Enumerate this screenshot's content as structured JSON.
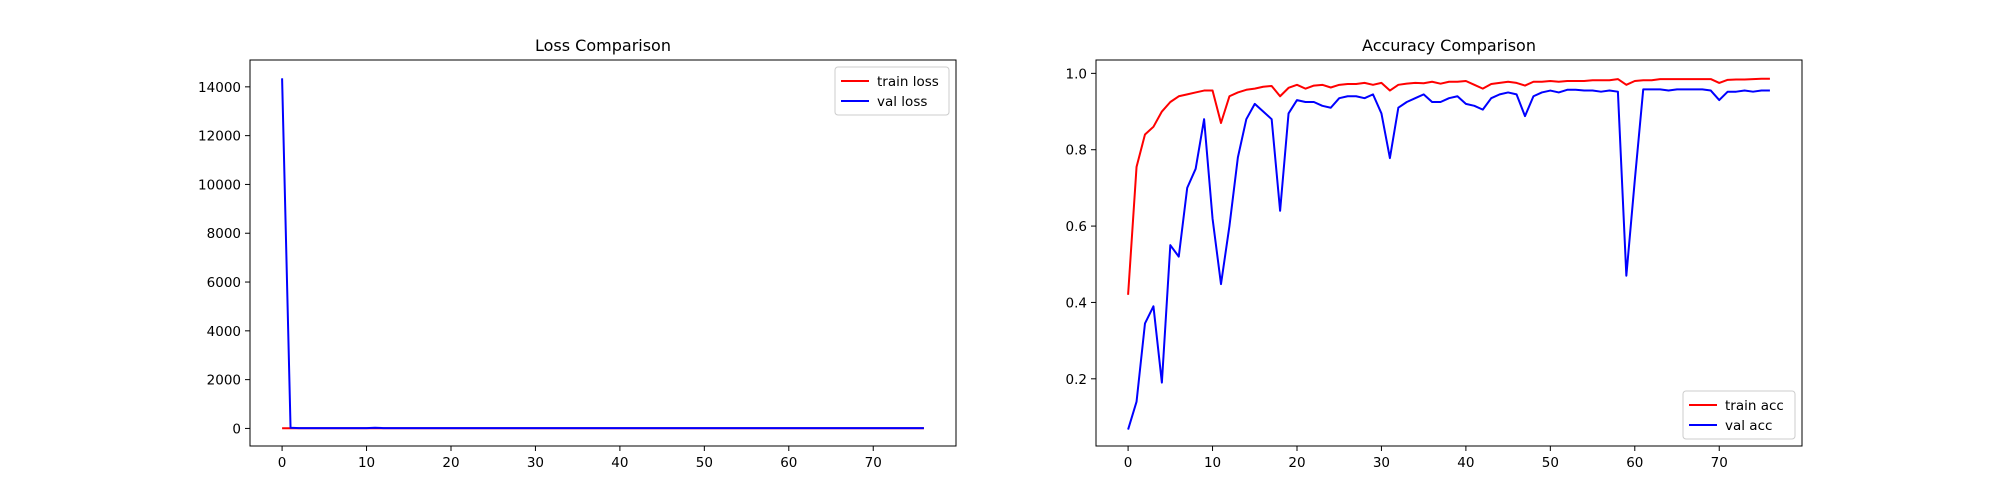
{
  "chart_data": [
    {
      "type": "line",
      "title": "Loss Comparison",
      "xlabel": "",
      "ylabel": "",
      "xlim": [
        -3.8,
        79.8
      ],
      "ylim": [
        -720,
        15100
      ],
      "xticks": [
        0,
        10,
        20,
        30,
        40,
        50,
        60,
        70
      ],
      "yticks": [
        0,
        2000,
        4000,
        6000,
        8000,
        10000,
        12000,
        14000
      ],
      "grid": false,
      "legend": "upper right",
      "series": [
        {
          "name": "train loss",
          "color": "#ff0000",
          "x": [
            0,
            76
          ],
          "y": [
            10,
            10
          ]
        },
        {
          "name": "val loss",
          "color": "#0000ff",
          "x": [
            0,
            1,
            2,
            10,
            11,
            12,
            76
          ],
          "y": [
            14350,
            30,
            15,
            15,
            30,
            15,
            12
          ]
        }
      ]
    },
    {
      "type": "line",
      "title": "Accuracy Comparison",
      "xlabel": "",
      "ylabel": "",
      "xlim": [
        -3.8,
        79.8
      ],
      "ylim": [
        0.024,
        1.035
      ],
      "xticks": [
        0,
        10,
        20,
        30,
        40,
        50,
        60,
        70
      ],
      "yticks": [
        0.2,
        0.4,
        0.6,
        0.8,
        1.0
      ],
      "ytick_labels": [
        "0.2",
        "0.4",
        "0.6",
        "0.8",
        "1.0"
      ],
      "grid": false,
      "legend": "lower right",
      "series": [
        {
          "name": "train acc",
          "color": "#ff0000",
          "x": [
            0,
            1,
            2,
            3,
            4,
            5,
            6,
            7,
            8,
            9,
            10,
            11,
            12,
            13,
            14,
            15,
            16,
            17,
            18,
            19,
            20,
            21,
            22,
            23,
            24,
            25,
            26,
            27,
            28,
            29,
            30,
            31,
            32,
            33,
            34,
            35,
            36,
            37,
            38,
            39,
            40,
            41,
            42,
            43,
            44,
            45,
            46,
            47,
            48,
            49,
            50,
            51,
            52,
            53,
            54,
            55,
            56,
            57,
            58,
            59,
            60,
            61,
            62,
            63,
            64,
            65,
            66,
            67,
            68,
            69,
            70,
            71,
            72,
            73,
            74,
            75,
            76
          ],
          "y": [
            0.42,
            0.755,
            0.84,
            0.86,
            0.9,
            0.925,
            0.94,
            0.945,
            0.95,
            0.955,
            0.955,
            0.87,
            0.94,
            0.95,
            0.957,
            0.96,
            0.965,
            0.967,
            0.94,
            0.962,
            0.97,
            0.96,
            0.968,
            0.97,
            0.963,
            0.97,
            0.972,
            0.972,
            0.975,
            0.97,
            0.975,
            0.955,
            0.97,
            0.973,
            0.975,
            0.974,
            0.978,
            0.973,
            0.978,
            0.978,
            0.98,
            0.97,
            0.96,
            0.972,
            0.975,
            0.978,
            0.975,
            0.968,
            0.978,
            0.978,
            0.98,
            0.978,
            0.98,
            0.98,
            0.98,
            0.982,
            0.982,
            0.982,
            0.985,
            0.97,
            0.98,
            0.982,
            0.982,
            0.985,
            0.985,
            0.985,
            0.985,
            0.985,
            0.985,
            0.985,
            0.975,
            0.983,
            0.984,
            0.984,
            0.985,
            0.986,
            0.986
          ]
        },
        {
          "name": "val acc",
          "color": "#0000ff",
          "x": [
            0,
            1,
            2,
            3,
            4,
            5,
            6,
            7,
            8,
            9,
            10,
            11,
            12,
            13,
            14,
            15,
            16,
            17,
            18,
            19,
            20,
            21,
            22,
            23,
            24,
            25,
            26,
            27,
            28,
            29,
            30,
            31,
            32,
            33,
            34,
            35,
            36,
            37,
            38,
            39,
            40,
            41,
            42,
            43,
            44,
            45,
            46,
            47,
            48,
            49,
            50,
            51,
            52,
            53,
            54,
            55,
            56,
            57,
            58,
            59,
            60,
            61,
            62,
            63,
            64,
            65,
            66,
            67,
            68,
            69,
            70,
            71,
            72,
            73,
            74,
            75,
            76
          ],
          "y": [
            0.067,
            0.14,
            0.345,
            0.39,
            0.19,
            0.55,
            0.52,
            0.7,
            0.75,
            0.88,
            0.62,
            0.448,
            0.6,
            0.78,
            0.88,
            0.92,
            0.9,
            0.88,
            0.64,
            0.895,
            0.93,
            0.925,
            0.925,
            0.915,
            0.91,
            0.935,
            0.94,
            0.94,
            0.935,
            0.945,
            0.895,
            0.778,
            0.91,
            0.925,
            0.935,
            0.945,
            0.925,
            0.925,
            0.935,
            0.94,
            0.92,
            0.915,
            0.905,
            0.935,
            0.945,
            0.95,
            0.945,
            0.888,
            0.94,
            0.95,
            0.955,
            0.95,
            0.957,
            0.957,
            0.955,
            0.955,
            0.952,
            0.955,
            0.952,
            0.47,
            0.72,
            0.958,
            0.958,
            0.958,
            0.955,
            0.958,
            0.958,
            0.958,
            0.958,
            0.955,
            0.93,
            0.952,
            0.952,
            0.955,
            0.952,
            0.955,
            0.955
          ]
        }
      ]
    }
  ]
}
